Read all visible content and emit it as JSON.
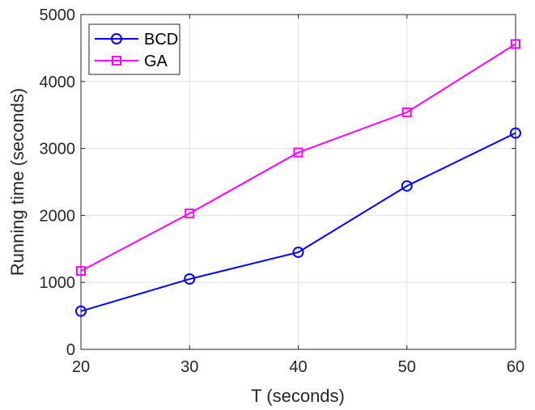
{
  "chart_data": {
    "type": "line",
    "x": [
      20,
      30,
      40,
      50,
      60
    ],
    "series": [
      {
        "name": "BCD",
        "values": [
          570,
          1050,
          1450,
          2440,
          3230
        ],
        "color": "#0000ff",
        "marker": "circle"
      },
      {
        "name": "GA",
        "values": [
          1170,
          2030,
          2940,
          3540,
          4560
        ],
        "color": "#ff00ff",
        "marker": "square"
      }
    ],
    "xlabel": "T (seconds)",
    "ylabel": "Running time (seconds)",
    "xlim": [
      20,
      60
    ],
    "ylim": [
      0,
      5000
    ],
    "xticks": [
      20,
      30,
      40,
      50,
      60
    ],
    "yticks": [
      0,
      1000,
      2000,
      3000,
      4000,
      5000
    ],
    "xtick_labels": [
      "20",
      "30",
      "40",
      "50",
      "60"
    ],
    "ytick_labels": [
      "0",
      "1000",
      "2000",
      "3000",
      "4000",
      "5000"
    ],
    "grid": true,
    "legend_position": "top-left"
  }
}
